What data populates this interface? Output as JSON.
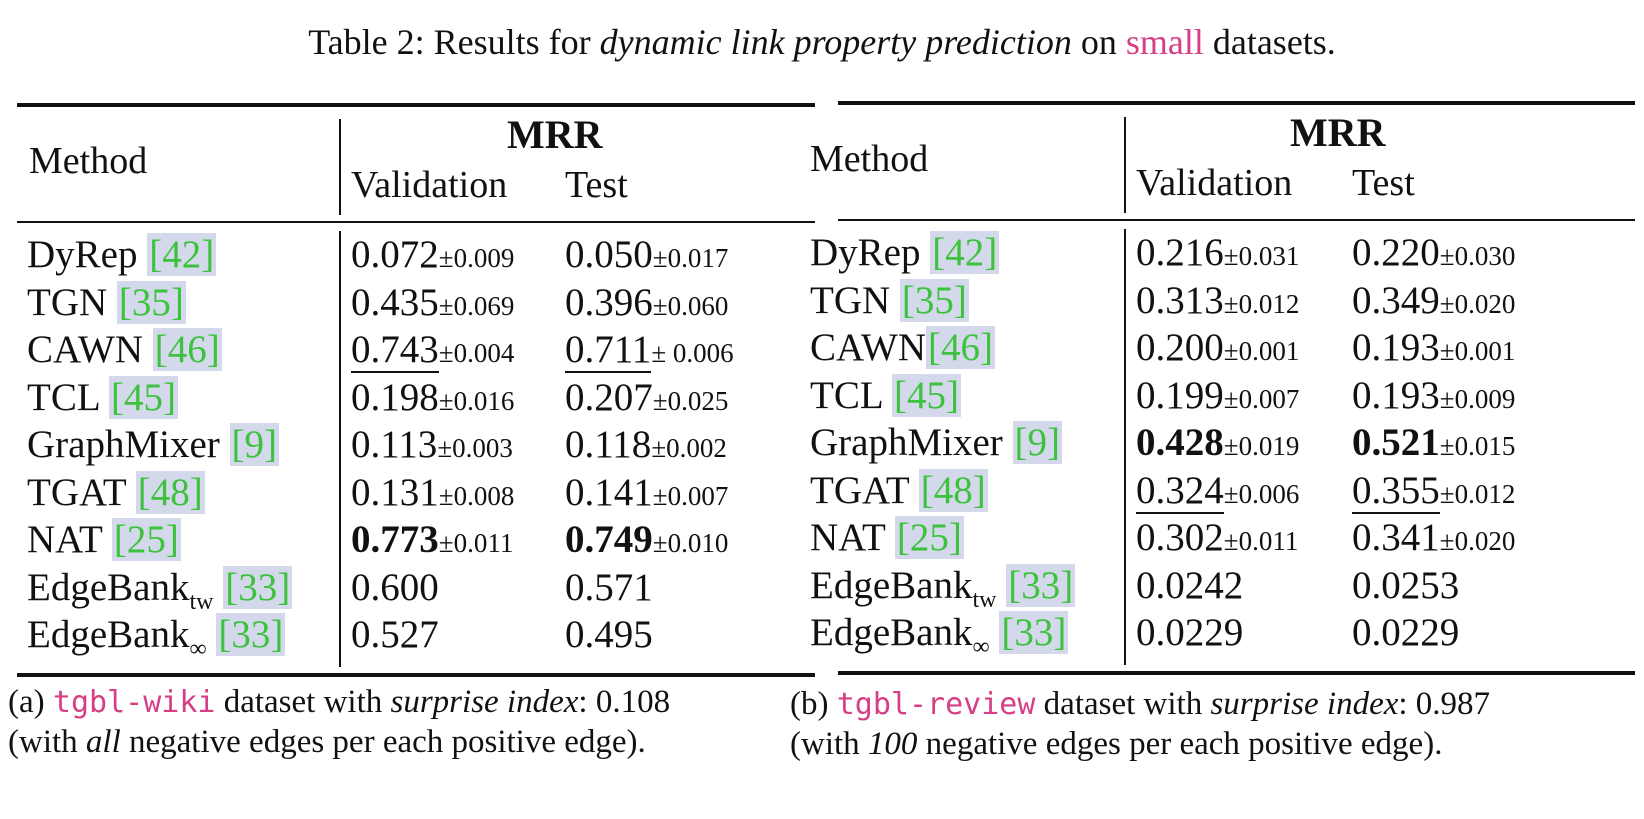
{
  "title": {
    "prefix": "Table 2: Results for ",
    "emphasis": "dynamic link property prediction",
    "middle": " on ",
    "highlight": "small",
    "suffix": " datasets."
  },
  "headers": {
    "method": "Method",
    "metric": "MRR",
    "validation": "Validation",
    "test": "Test"
  },
  "table_a": {
    "caption": {
      "prefix": "(a) ",
      "dataset": "tgbl-wiki",
      "mid": " dataset with ",
      "emph": "surprise index",
      "value": ": 0.108",
      "line2_prefix": "(with ",
      "line2_emph": "all",
      "line2_suffix": " negative edges per each positive edge)."
    },
    "rows": [
      {
        "method": "DyRep ",
        "sub": "",
        "cite": "[42]",
        "val": "0.072",
        "val_pm": "±0.009",
        "test": "0.050",
        "test_pm": "±0.017",
        "style": ""
      },
      {
        "method": "TGN ",
        "sub": "",
        "cite": "[35]",
        "val": "0.435",
        "val_pm": "±0.069",
        "test": "0.396",
        "test_pm": "±0.060",
        "style": ""
      },
      {
        "method": "CAWN ",
        "sub": "",
        "cite": "[46]",
        "val": "0.743",
        "val_pm": "±0.004",
        "test": "0.711",
        "test_pm": "± 0.006",
        "style": "underline"
      },
      {
        "method": "TCL ",
        "sub": "",
        "cite": "[45]",
        "val": "0.198",
        "val_pm": "±0.016",
        "test": "0.207",
        "test_pm": "±0.025",
        "style": ""
      },
      {
        "method": "GraphMixer ",
        "sub": "",
        "cite": "[9]",
        "val": "0.113",
        "val_pm": "±0.003",
        "test": "0.118",
        "test_pm": "±0.002",
        "style": ""
      },
      {
        "method": "TGAT ",
        "sub": "",
        "cite": "[48]",
        "val": "0.131",
        "val_pm": "±0.008",
        "test": "0.141",
        "test_pm": "±0.007",
        "style": ""
      },
      {
        "method": "NAT ",
        "sub": "",
        "cite": "[25]",
        "val": "0.773",
        "val_pm": "±0.011",
        "test": "0.749",
        "test_pm": "±0.010",
        "style": "bold"
      },
      {
        "method": "EdgeBank",
        "sub": "tw",
        "cite": "[33]",
        "val": "0.600",
        "val_pm": "",
        "test": "0.571",
        "test_pm": "",
        "style": ""
      },
      {
        "method": "EdgeBank",
        "sub": "∞",
        "cite": "[33]",
        "val": "0.527",
        "val_pm": "",
        "test": "0.495",
        "test_pm": "",
        "style": ""
      }
    ]
  },
  "table_b": {
    "caption": {
      "prefix": "(b) ",
      "dataset": "tgbl-review",
      "mid": " dataset with ",
      "emph": "surprise index",
      "value": ": 0.987",
      "line2_prefix": "(with ",
      "line2_emph": "100",
      "line2_suffix": " negative edges per each positive edge)."
    },
    "rows": [
      {
        "method": "DyRep ",
        "sub": "",
        "cite": "[42]",
        "val": "0.216",
        "val_pm": "±0.031",
        "test": "0.220",
        "test_pm": "±0.030",
        "style": ""
      },
      {
        "method": "TGN ",
        "sub": "",
        "cite": "[35]",
        "val": "0.313",
        "val_pm": "±0.012",
        "test": "0.349",
        "test_pm": "±0.020",
        "style": ""
      },
      {
        "method": "CAWN",
        "sub": "",
        "cite": "[46]",
        "val": "0.200",
        "val_pm": "±0.001",
        "test": "0.193",
        "test_pm": "±0.001",
        "style": ""
      },
      {
        "method": "TCL ",
        "sub": "",
        "cite": "[45]",
        "val": "0.199",
        "val_pm": "±0.007",
        "test": "0.193",
        "test_pm": "±0.009",
        "style": ""
      },
      {
        "method": "GraphMixer ",
        "sub": "",
        "cite": "[9]",
        "val": "0.428",
        "val_pm": "±0.019",
        "test": "0.521",
        "test_pm": "±0.015",
        "style": "bold"
      },
      {
        "method": "TGAT ",
        "sub": "",
        "cite": "[48]",
        "val": "0.324",
        "val_pm": "±0.006",
        "test": "0.355",
        "test_pm": "±0.012",
        "style": "underline"
      },
      {
        "method": "NAT ",
        "sub": "",
        "cite": "[25]",
        "val": "0.302",
        "val_pm": "±0.011",
        "test": "0.341",
        "test_pm": "±0.020",
        "style": ""
      },
      {
        "method": "EdgeBank",
        "sub": "tw",
        "cite": "[33]",
        "val": "0.0242",
        "val_pm": "",
        "test": "0.0253",
        "test_pm": "",
        "style": ""
      },
      {
        "method": "EdgeBank",
        "sub": "∞",
        "cite": "[33]",
        "val": "0.0229",
        "val_pm": "",
        "test": "0.0229",
        "test_pm": "",
        "style": ""
      }
    ]
  }
}
